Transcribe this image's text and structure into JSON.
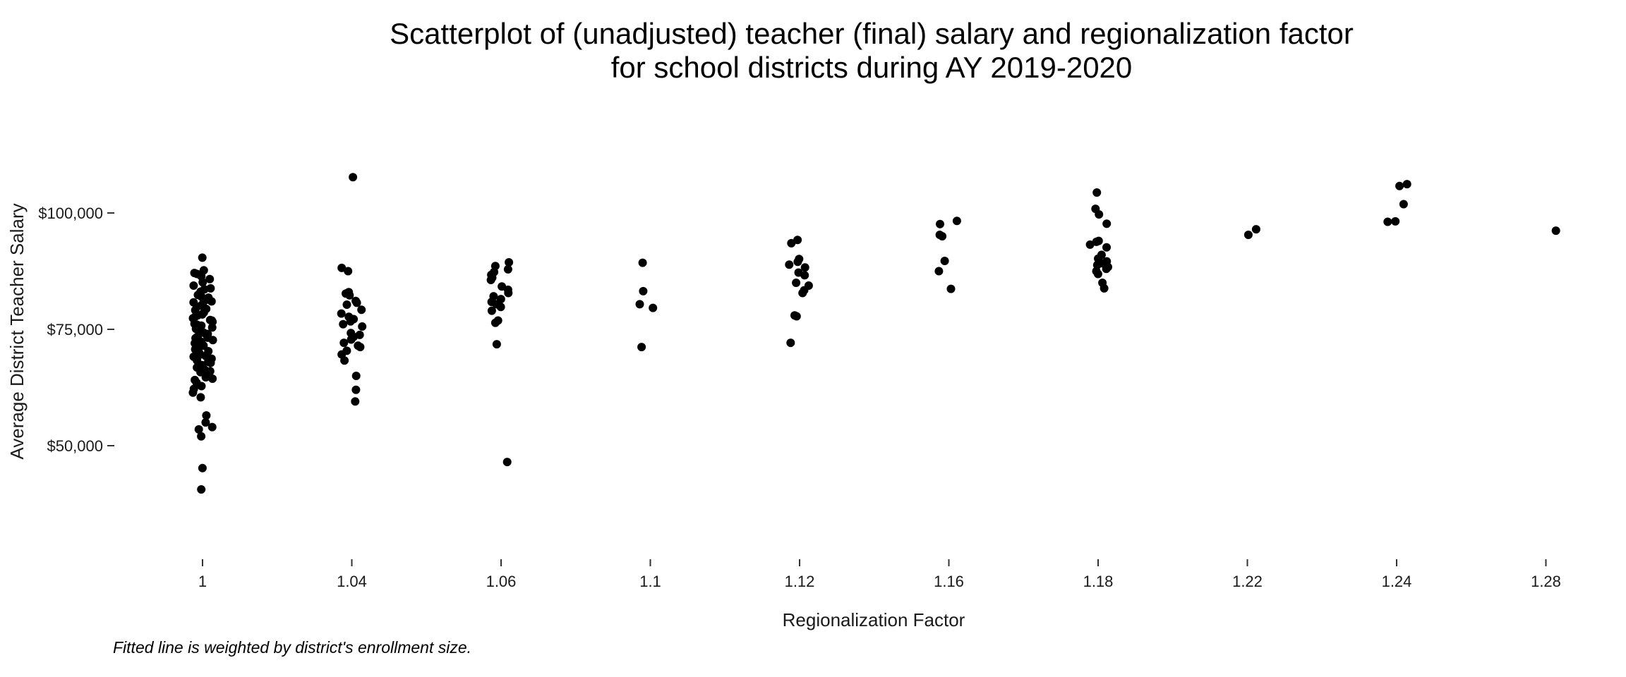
{
  "chart_data": {
    "type": "scatter",
    "title": [
      "Scatterplot of (unadjusted) teacher (final) salary and regionalization factor",
      "for school districts during AY 2019-2020"
    ],
    "xlabel": "Regionalization Factor",
    "ylabel": "Average District Teacher Salary",
    "caption": "Fitted line is weighted by district's enrollment size.",
    "x_axis": {
      "scale": "categorical",
      "categories": [
        "1",
        "1.04",
        "1.06",
        "1.1",
        "1.12",
        "1.16",
        "1.18",
        "1.22",
        "1.24",
        "1.28"
      ]
    },
    "y_axis": {
      "ticks": [
        50000,
        75000,
        100000
      ],
      "tick_labels": [
        "$50,000",
        "$75,000",
        "$100,000"
      ],
      "range": [
        25000,
        112000
      ]
    },
    "grid": false,
    "point_color": "#000000",
    "points": [
      {
        "x": "1",
        "y": 90400
      },
      {
        "x": "1",
        "y": 87700
      },
      {
        "x": "1",
        "y": 87100
      },
      {
        "x": "1",
        "y": 86900
      },
      {
        "x": "1",
        "y": 86400
      },
      {
        "x": "1",
        "y": 85100
      },
      {
        "x": "1",
        "y": 84400
      },
      {
        "x": "1",
        "y": 83800
      },
      {
        "x": "1",
        "y": 83600
      },
      {
        "x": "1",
        "y": 83100
      },
      {
        "x": "1",
        "y": 82400
      },
      {
        "x": "1",
        "y": 81800
      },
      {
        "x": "1",
        "y": 81300
      },
      {
        "x": "1",
        "y": 80800
      },
      {
        "x": "1",
        "y": 80400
      },
      {
        "x": "1",
        "y": 79900
      },
      {
        "x": "1",
        "y": 79400
      },
      {
        "x": "1",
        "y": 79100
      },
      {
        "x": "1",
        "y": 78600
      },
      {
        "x": "1",
        "y": 78200
      },
      {
        "x": "1",
        "y": 77800
      },
      {
        "x": "1",
        "y": 77400
      },
      {
        "x": "1",
        "y": 76900
      },
      {
        "x": "1",
        "y": 76600
      },
      {
        "x": "1",
        "y": 76200
      },
      {
        "x": "1",
        "y": 75800
      },
      {
        "x": "1",
        "y": 75400
      },
      {
        "x": "1",
        "y": 75100
      },
      {
        "x": "1",
        "y": 74700
      },
      {
        "x": "1",
        "y": 74300
      },
      {
        "x": "1",
        "y": 73900
      },
      {
        "x": "1",
        "y": 73500
      },
      {
        "x": "1",
        "y": 73100
      },
      {
        "x": "1",
        "y": 72700
      },
      {
        "x": "1",
        "y": 72300
      },
      {
        "x": "1",
        "y": 71900
      },
      {
        "x": "1",
        "y": 71500
      },
      {
        "x": "1",
        "y": 71100
      },
      {
        "x": "1",
        "y": 70700
      },
      {
        "x": "1",
        "y": 70300
      },
      {
        "x": "1",
        "y": 69900
      },
      {
        "x": "1",
        "y": 69500
      },
      {
        "x": "1",
        "y": 69100
      },
      {
        "x": "1",
        "y": 68700
      },
      {
        "x": "1",
        "y": 68300
      },
      {
        "x": "1",
        "y": 67800
      },
      {
        "x": "1",
        "y": 67300
      },
      {
        "x": "1",
        "y": 66800
      },
      {
        "x": "1",
        "y": 66300
      },
      {
        "x": "1",
        "y": 65800
      },
      {
        "x": "1",
        "y": 65300
      },
      {
        "x": "1",
        "y": 64700
      },
      {
        "x": "1",
        "y": 64100
      },
      {
        "x": "1",
        "y": 63500
      },
      {
        "x": "1",
        "y": 62800
      },
      {
        "x": "1",
        "y": 62200
      },
      {
        "x": "1",
        "y": 61400
      },
      {
        "x": "1",
        "y": 60400
      },
      {
        "x": "1",
        "y": 56500
      },
      {
        "x": "1",
        "y": 55000
      },
      {
        "x": "1",
        "y": 54000
      },
      {
        "x": "1",
        "y": 53500
      },
      {
        "x": "1",
        "y": 52000
      },
      {
        "x": "1",
        "y": 45200
      },
      {
        "x": "1",
        "y": 40600
      },
      {
        "x": "1",
        "y": 85800
      },
      {
        "x": "1",
        "y": 82000
      },
      {
        "x": "1",
        "y": 80100
      },
      {
        "x": "1",
        "y": 78000
      },
      {
        "x": "1",
        "y": 76000
      },
      {
        "x": "1",
        "y": 74000
      },
      {
        "x": "1",
        "y": 72000
      },
      {
        "x": "1",
        "y": 70000
      },
      {
        "x": "1",
        "y": 68000
      },
      {
        "x": "1",
        "y": 66000
      },
      {
        "x": "1",
        "y": 64400
      },
      {
        "x": "1",
        "y": 81000
      },
      {
        "x": "1",
        "y": 77000
      },
      {
        "x": "1",
        "y": 73200
      },
      {
        "x": "1",
        "y": 69300
      },
      {
        "x": "1.04",
        "y": 107700
      },
      {
        "x": "1.04",
        "y": 88200
      },
      {
        "x": "1.04",
        "y": 87500
      },
      {
        "x": "1.04",
        "y": 83000
      },
      {
        "x": "1.04",
        "y": 82700
      },
      {
        "x": "1.04",
        "y": 82300
      },
      {
        "x": "1.04",
        "y": 81100
      },
      {
        "x": "1.04",
        "y": 80700
      },
      {
        "x": "1.04",
        "y": 80300
      },
      {
        "x": "1.04",
        "y": 79200
      },
      {
        "x": "1.04",
        "y": 78400
      },
      {
        "x": "1.04",
        "y": 77700
      },
      {
        "x": "1.04",
        "y": 77200
      },
      {
        "x": "1.04",
        "y": 76700
      },
      {
        "x": "1.04",
        "y": 76100
      },
      {
        "x": "1.04",
        "y": 75600
      },
      {
        "x": "1.04",
        "y": 74200
      },
      {
        "x": "1.04",
        "y": 73800
      },
      {
        "x": "1.04",
        "y": 73400
      },
      {
        "x": "1.04",
        "y": 72800
      },
      {
        "x": "1.04",
        "y": 72100
      },
      {
        "x": "1.04",
        "y": 71500
      },
      {
        "x": "1.04",
        "y": 71200
      },
      {
        "x": "1.04",
        "y": 70400
      },
      {
        "x": "1.04",
        "y": 69600
      },
      {
        "x": "1.04",
        "y": 68300
      },
      {
        "x": "1.04",
        "y": 65000
      },
      {
        "x": "1.04",
        "y": 62000
      },
      {
        "x": "1.04",
        "y": 59500
      },
      {
        "x": "1.06",
        "y": 89400
      },
      {
        "x": "1.06",
        "y": 88600
      },
      {
        "x": "1.06",
        "y": 87900
      },
      {
        "x": "1.06",
        "y": 87300
      },
      {
        "x": "1.06",
        "y": 86700
      },
      {
        "x": "1.06",
        "y": 86100
      },
      {
        "x": "1.06",
        "y": 85600
      },
      {
        "x": "1.06",
        "y": 84200
      },
      {
        "x": "1.06",
        "y": 83500
      },
      {
        "x": "1.06",
        "y": 82800
      },
      {
        "x": "1.06",
        "y": 82100
      },
      {
        "x": "1.06",
        "y": 81500
      },
      {
        "x": "1.06",
        "y": 80900
      },
      {
        "x": "1.06",
        "y": 80400
      },
      {
        "x": "1.06",
        "y": 79800
      },
      {
        "x": "1.06",
        "y": 79000
      },
      {
        "x": "1.06",
        "y": 76900
      },
      {
        "x": "1.06",
        "y": 76400
      },
      {
        "x": "1.06",
        "y": 71800
      },
      {
        "x": "1.06",
        "y": 46500
      },
      {
        "x": "1.1",
        "y": 89300
      },
      {
        "x": "1.1",
        "y": 83200
      },
      {
        "x": "1.1",
        "y": 80400
      },
      {
        "x": "1.1",
        "y": 79600
      },
      {
        "x": "1.1",
        "y": 71200
      },
      {
        "x": "1.12",
        "y": 94200
      },
      {
        "x": "1.12",
        "y": 93500
      },
      {
        "x": "1.12",
        "y": 90100
      },
      {
        "x": "1.12",
        "y": 89500
      },
      {
        "x": "1.12",
        "y": 88900
      },
      {
        "x": "1.12",
        "y": 88300
      },
      {
        "x": "1.12",
        "y": 87200
      },
      {
        "x": "1.12",
        "y": 86600
      },
      {
        "x": "1.12",
        "y": 85000
      },
      {
        "x": "1.12",
        "y": 84400
      },
      {
        "x": "1.12",
        "y": 83400
      },
      {
        "x": "1.12",
        "y": 82800
      },
      {
        "x": "1.12",
        "y": 78000
      },
      {
        "x": "1.12",
        "y": 77800
      },
      {
        "x": "1.12",
        "y": 72100
      },
      {
        "x": "1.16",
        "y": 98300
      },
      {
        "x": "1.16",
        "y": 97600
      },
      {
        "x": "1.16",
        "y": 95300
      },
      {
        "x": "1.16",
        "y": 95000
      },
      {
        "x": "1.16",
        "y": 89700
      },
      {
        "x": "1.16",
        "y": 87500
      },
      {
        "x": "1.16",
        "y": 83700
      },
      {
        "x": "1.18",
        "y": 104400
      },
      {
        "x": "1.18",
        "y": 100900
      },
      {
        "x": "1.18",
        "y": 99700
      },
      {
        "x": "1.18",
        "y": 97700
      },
      {
        "x": "1.18",
        "y": 94000
      },
      {
        "x": "1.18",
        "y": 93800
      },
      {
        "x": "1.18",
        "y": 93200
      },
      {
        "x": "1.18",
        "y": 92600
      },
      {
        "x": "1.18",
        "y": 91000
      },
      {
        "x": "1.18",
        "y": 90200
      },
      {
        "x": "1.18",
        "y": 89600
      },
      {
        "x": "1.18",
        "y": 89200
      },
      {
        "x": "1.18",
        "y": 88800
      },
      {
        "x": "1.18",
        "y": 88400
      },
      {
        "x": "1.18",
        "y": 88000
      },
      {
        "x": "1.18",
        "y": 87500
      },
      {
        "x": "1.18",
        "y": 86900
      },
      {
        "x": "1.18",
        "y": 85000
      },
      {
        "x": "1.18",
        "y": 83800
      },
      {
        "x": "1.22",
        "y": 96500
      },
      {
        "x": "1.22",
        "y": 95300
      },
      {
        "x": "1.24",
        "y": 106200
      },
      {
        "x": "1.24",
        "y": 105800
      },
      {
        "x": "1.24",
        "y": 101900
      },
      {
        "x": "1.24",
        "y": 98200
      },
      {
        "x": "1.24",
        "y": 98100
      },
      {
        "x": "1.28",
        "y": 96200
      }
    ]
  }
}
